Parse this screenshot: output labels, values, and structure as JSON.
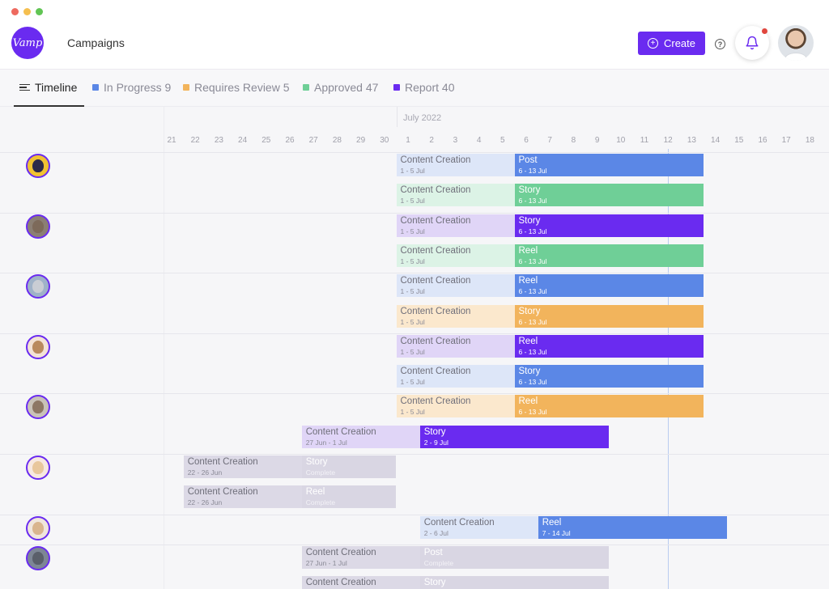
{
  "window_controls": {
    "colors": [
      "#ee6a5f",
      "#f5bf4f",
      "#61c554"
    ]
  },
  "header": {
    "logo_text": "Vamp",
    "title": "Campaigns",
    "create_label": "Create",
    "help_glyph": "?",
    "accent": "#6a2bf0",
    "notification_dot": "#e0463e"
  },
  "tabs": [
    {
      "label": "Timeline",
      "count": "",
      "color": ""
    },
    {
      "label": "In Progress",
      "count": "9",
      "color": "#5b87e6"
    },
    {
      "label": "Requires Review",
      "count": "5",
      "color": "#f2b45c"
    },
    {
      "label": "Approved",
      "count": "47",
      "color": "#6fcf97"
    },
    {
      "label": "Report",
      "count": "40",
      "color": "#6a2bf0"
    }
  ],
  "timeline": {
    "month": "July 2022",
    "days": [
      "21",
      "22",
      "23",
      "24",
      "25",
      "26",
      "27",
      "28",
      "29",
      "30",
      "1",
      "2",
      "3",
      "4",
      "5",
      "6",
      "7",
      "8",
      "9",
      "10",
      "11",
      "12",
      "13",
      "14",
      "15",
      "16",
      "17",
      "18"
    ],
    "today": "12"
  },
  "lanes": [
    {
      "avatar": "dog-avatar",
      "rows": [
        {
          "phase1": {
            "label": "Content Creation",
            "dates": "1 - 5 Jul",
            "start": "1",
            "end": "5"
          },
          "phase2": {
            "label": "Post",
            "dates": "6 - 13 Jul",
            "start": "6",
            "end": "13",
            "status": "In Progress"
          }
        },
        {
          "phase1": {
            "label": "Content Creation",
            "dates": "1 - 5 Jul",
            "start": "1",
            "end": "5"
          },
          "phase2": {
            "label": "Story",
            "dates": "6 - 13 Jul",
            "start": "6",
            "end": "13",
            "status": "Approved"
          }
        }
      ]
    },
    {
      "avatar": "wolf-avatar",
      "rows": [
        {
          "phase1": {
            "label": "Content Creation",
            "dates": "1 - 5 Jul",
            "start": "1",
            "end": "5"
          },
          "phase2": {
            "label": "Story",
            "dates": "6 - 13 Jul",
            "start": "6",
            "end": "13",
            "status": "Report"
          }
        },
        {
          "phase1": {
            "label": "Content Creation",
            "dates": "1 - 5 Jul",
            "start": "1",
            "end": "5"
          },
          "phase2": {
            "label": "Reel",
            "dates": "6 - 13 Jul",
            "start": "6",
            "end": "13",
            "status": "Approved"
          }
        }
      ]
    },
    {
      "avatar": "husky-avatar",
      "rows": [
        {
          "phase1": {
            "label": "Content Creation",
            "dates": "1 - 5 Jul",
            "start": "1",
            "end": "5"
          },
          "phase2": {
            "label": "Reel",
            "dates": "6 - 13 Jul",
            "start": "6",
            "end": "13",
            "status": "In Progress"
          }
        },
        {
          "phase1": {
            "label": "Content Creation",
            "dates": "1 - 5 Jul",
            "start": "1",
            "end": "5"
          },
          "phase2": {
            "label": "Story",
            "dates": "6 - 13 Jul",
            "start": "6",
            "end": "13",
            "status": "Requires Review"
          }
        }
      ]
    },
    {
      "avatar": "cat-avatar",
      "rows": [
        {
          "phase1": {
            "label": "Content Creation",
            "dates": "1 - 5 Jul",
            "start": "1",
            "end": "5"
          },
          "phase2": {
            "label": "Reel",
            "dates": "6 - 13 Jul",
            "start": "6",
            "end": "13",
            "status": "Report"
          }
        },
        {
          "phase1": {
            "label": "Content Creation",
            "dates": "1 - 5 Jul",
            "start": "1",
            "end": "5"
          },
          "phase2": {
            "label": "Story",
            "dates": "6 - 13 Jul",
            "start": "6",
            "end": "13",
            "status": "In Progress"
          }
        }
      ]
    },
    {
      "avatar": "puppy-avatar",
      "rows": [
        {
          "phase1": {
            "label": "Content Creation",
            "dates": "1 - 5 Jul",
            "start": "1",
            "end": "5"
          },
          "phase2": {
            "label": "Reel",
            "dates": "6 - 13 Jul",
            "start": "6",
            "end": "13",
            "status": "Requires Review"
          }
        },
        {
          "phase1": {
            "label": "Content Creation",
            "dates": "27 Jun - 1 Jul",
            "start": "27",
            "end": "1"
          },
          "phase2": {
            "label": "Story",
            "dates": "2 - 9 Jul",
            "start": "2",
            "end": "9",
            "status": "Report"
          }
        }
      ]
    },
    {
      "avatar": "shiba-avatar",
      "rows": [
        {
          "phase1": {
            "label": "Content Creation",
            "dates": "22 - 26 Jun",
            "start": "22",
            "end": "26"
          },
          "phase2": {
            "label": "Story",
            "dates": "Complete",
            "start": "27",
            "end": "30",
            "status": "Complete"
          }
        },
        {
          "phase1": {
            "label": "Content Creation",
            "dates": "22 - 26 Jun",
            "start": "22",
            "end": "26"
          },
          "phase2": {
            "label": "Reel",
            "dates": "Complete",
            "start": "27",
            "end": "30",
            "status": "Complete"
          }
        }
      ]
    },
    {
      "avatar": "corgi-avatar",
      "rows": [
        {
          "phase1": {
            "label": "Content Creation",
            "dates": "2 - 6 Jul",
            "start": "2",
            "end": "6"
          },
          "phase2": {
            "label": "Reel",
            "dates": "7 - 14 Jul",
            "start": "7",
            "end": "14",
            "status": "In Progress"
          }
        }
      ]
    },
    {
      "avatar": "cat2-avatar",
      "rows": [
        {
          "phase1": {
            "label": "Content Creation",
            "dates": "27 Jun - 1 Jul",
            "start": "27",
            "end": "1"
          },
          "phase2": {
            "label": "Post",
            "dates": "Complete",
            "start": "2",
            "end": "9",
            "status": "Complete"
          }
        },
        {
          "phase1": {
            "label": "Content Creation",
            "dates": "",
            "start": "27",
            "end": "1"
          },
          "phase2": {
            "label": "Story",
            "dates": "",
            "start": "2",
            "end": "9",
            "status": "Complete"
          }
        }
      ]
    }
  ],
  "status_colors": {
    "In Progress": {
      "solid": "#5b87e6",
      "light": "#dde6f8"
    },
    "Approved": {
      "solid": "#6fcf97",
      "light": "#dcf3e6"
    },
    "Report": {
      "solid": "#6a2bf0",
      "light": "#e0d5f7"
    },
    "Requires Review": {
      "solid": "#f2b45c",
      "light": "#fbe8cd"
    },
    "Complete": {
      "solid": "#d9d6e3",
      "light": "#d9d6e3"
    }
  }
}
